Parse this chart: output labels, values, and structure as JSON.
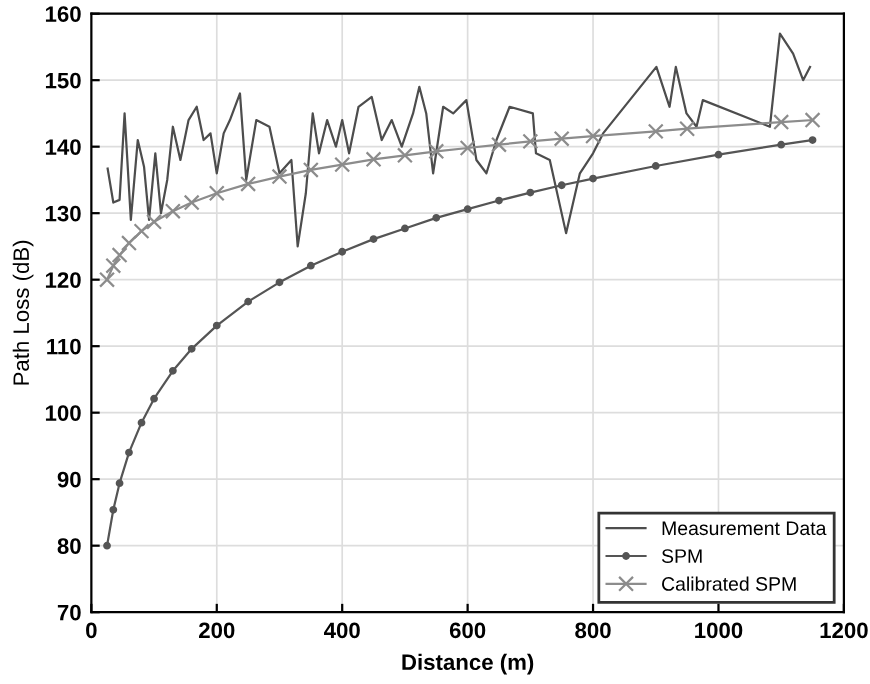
{
  "chart_data": {
    "type": "line",
    "xlabel": "Distance (m)",
    "ylabel": "Path Loss (dB)",
    "xlim": [
      0,
      1200
    ],
    "xticks": [
      0,
      200,
      400,
      600,
      800,
      1000,
      1200
    ],
    "ylim": [
      70,
      160
    ],
    "yticks": [
      70,
      80,
      90,
      100,
      110,
      120,
      130,
      140,
      150,
      160
    ],
    "grid": true,
    "legend": "bottom right",
    "series": [
      {
        "name": "Measurement Data",
        "color": "#4d4d4d",
        "marker": "none",
        "x": [
          26,
          35,
          45,
          53,
          63,
          74,
          84,
          92,
          102,
          111,
          121,
          130,
          142,
          155,
          168,
          179,
          190,
          200,
          211,
          221,
          237,
          247,
          263,
          284,
          300,
          319,
          329,
          342,
          353,
          363,
          376,
          390,
          400,
          411,
          426,
          447,
          463,
          479,
          495,
          513,
          523,
          534,
          545,
          561,
          577,
          598,
          614,
          630,
          646,
          667,
          704,
          709,
          731,
          757,
          779,
          800,
          816,
          901,
          922,
          932,
          949,
          965,
          975,
          1082,
          1098,
          1119,
          1135,
          1146
        ],
        "values": [
          136.7,
          131.6,
          132,
          145,
          129,
          141,
          137,
          129,
          139,
          130,
          135,
          143,
          138,
          144,
          146,
          141,
          142,
          136,
          142,
          144,
          148,
          135,
          144,
          143,
          136,
          138,
          125,
          133,
          145,
          139,
          144,
          140,
          144,
          139,
          146,
          147.5,
          141,
          144,
          140,
          145,
          149,
          145,
          136,
          146,
          145,
          147,
          138,
          136,
          141,
          146,
          145,
          139,
          138,
          127,
          136,
          139,
          142,
          152,
          146,
          152,
          145,
          143,
          147,
          143,
          157,
          154,
          150,
          152
        ]
      },
      {
        "name": "SPM",
        "color": "#555555",
        "marker": "circle",
        "x": [
          25,
          35,
          45,
          60,
          80,
          100,
          130,
          160,
          200,
          250,
          300,
          350,
          400,
          450,
          500,
          550,
          600,
          650,
          700,
          750,
          800,
          900,
          1000,
          1100,
          1150
        ],
        "values": [
          80,
          85.4,
          89.4,
          94.0,
          98.5,
          102.1,
          106.3,
          109.6,
          113.1,
          116.7,
          119.6,
          122.1,
          124.2,
          126.1,
          127.7,
          129.3,
          130.6,
          131.9,
          133.1,
          134.2,
          135.2,
          137.1,
          138.8,
          140.3,
          141.0
        ]
      },
      {
        "name": "Calibrated SPM",
        "color": "#8c8c8c",
        "marker": "cross",
        "x": [
          25,
          35,
          45,
          60,
          80,
          100,
          130,
          160,
          200,
          250,
          300,
          350,
          400,
          450,
          500,
          550,
          600,
          650,
          700,
          750,
          800,
          900,
          950,
          1100,
          1150
        ],
        "values": [
          120,
          122.1,
          123.7,
          125.5,
          127.3,
          128.7,
          130.3,
          131.6,
          133.0,
          134.4,
          135.5,
          136.5,
          137.3,
          138.1,
          138.7,
          139.3,
          139.8,
          140.3,
          140.8,
          141.2,
          141.6,
          142.3,
          142.7,
          143.7,
          144.0
        ]
      }
    ]
  }
}
